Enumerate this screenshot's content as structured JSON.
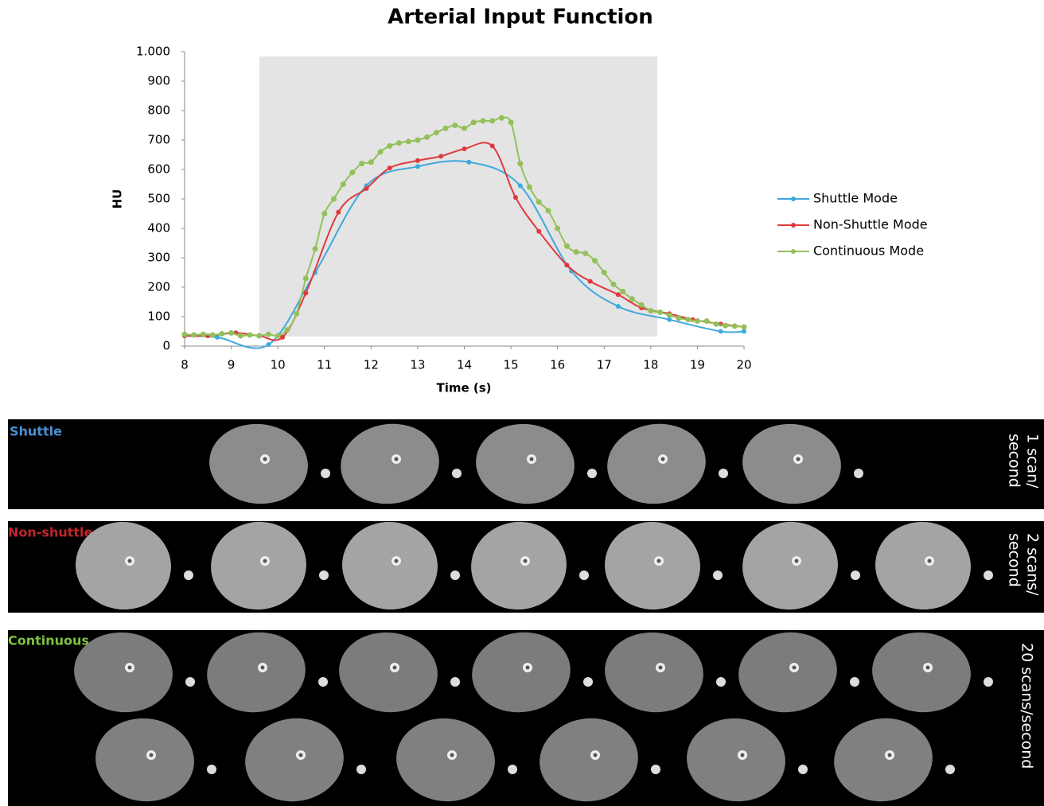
{
  "chart_data": {
    "type": "line",
    "title": "Arterial Input Function",
    "xlabel": "Time (s)",
    "ylabel": "HU",
    "xlim": [
      8,
      20
    ],
    "xticks": [
      8,
      9,
      10,
      11,
      12,
      13,
      14,
      15,
      16,
      17,
      18,
      19,
      20
    ],
    "ylim": [
      0,
      1000
    ],
    "yticks": [
      0,
      100,
      200,
      300,
      400,
      500,
      600,
      700,
      800,
      900,
      {
        "value": 1000,
        "label": "1.000"
      }
    ],
    "legend": "right",
    "series": [
      {
        "name": "Shuttle Mode",
        "color": "#3fa9dd",
        "x": [
          8.0,
          8.7,
          9.8,
          10.8,
          11.9,
          13.0,
          14.1,
          15.2,
          16.3,
          17.3,
          18.4,
          19.5,
          20.0
        ],
        "values": [
          35,
          30,
          5,
          250,
          545,
          610,
          625,
          545,
          255,
          135,
          90,
          50,
          50
        ]
      },
      {
        "name": "Non-Shuttle Mode",
        "color": "#e0393b",
        "x": [
          8.0,
          8.5,
          9.1,
          9.6,
          10.1,
          10.6,
          11.3,
          11.9,
          12.4,
          13.0,
          13.5,
          14.0,
          14.6,
          15.1,
          15.6,
          16.2,
          16.7,
          17.3,
          17.8,
          18.4,
          18.9,
          19.5,
          20.0
        ],
        "values": [
          35,
          35,
          45,
          35,
          30,
          180,
          455,
          535,
          605,
          630,
          645,
          670,
          680,
          505,
          390,
          275,
          220,
          175,
          130,
          110,
          90,
          75,
          65
        ]
      },
      {
        "name": "Continuous Mode",
        "color": "#93c05a",
        "x": [
          8.0,
          8.2,
          8.4,
          8.6,
          8.8,
          9.0,
          9.2,
          9.4,
          9.6,
          9.8,
          10.0,
          10.2,
          10.4,
          10.6,
          10.8,
          11.0,
          11.2,
          11.4,
          11.6,
          11.8,
          12.0,
          12.2,
          12.4,
          12.6,
          12.8,
          13.0,
          13.2,
          13.4,
          13.6,
          13.8,
          14.0,
          14.2,
          14.4,
          14.6,
          14.8,
          15.0,
          15.2,
          15.4,
          15.6,
          15.8,
          16.0,
          16.2,
          16.4,
          16.6,
          16.8,
          17.0,
          17.2,
          17.4,
          17.6,
          17.8,
          18.0,
          18.2,
          18.4,
          18.6,
          18.8,
          19.0,
          19.2,
          19.4,
          19.6,
          19.8,
          20.0
        ],
        "values": [
          40,
          38,
          40,
          38,
          42,
          45,
          35,
          38,
          35,
          40,
          35,
          55,
          110,
          230,
          330,
          450,
          500,
          550,
          590,
          620,
          625,
          660,
          680,
          690,
          695,
          700,
          710,
          725,
          740,
          750,
          740,
          760,
          765,
          765,
          775,
          760,
          620,
          540,
          490,
          460,
          400,
          340,
          320,
          315,
          290,
          250,
          210,
          185,
          160,
          140,
          120,
          115,
          105,
          95,
          90,
          85,
          85,
          75,
          70,
          68,
          65
        ]
      }
    ]
  },
  "panels": [
    {
      "label": "Shuttle",
      "side": [
        "1 scan/",
        "second"
      ]
    },
    {
      "label": "Non-shuttle",
      "side": [
        "2 scans/",
        "second"
      ]
    },
    {
      "label": "Continuous",
      "side": [
        "20 scans/second"
      ]
    }
  ]
}
